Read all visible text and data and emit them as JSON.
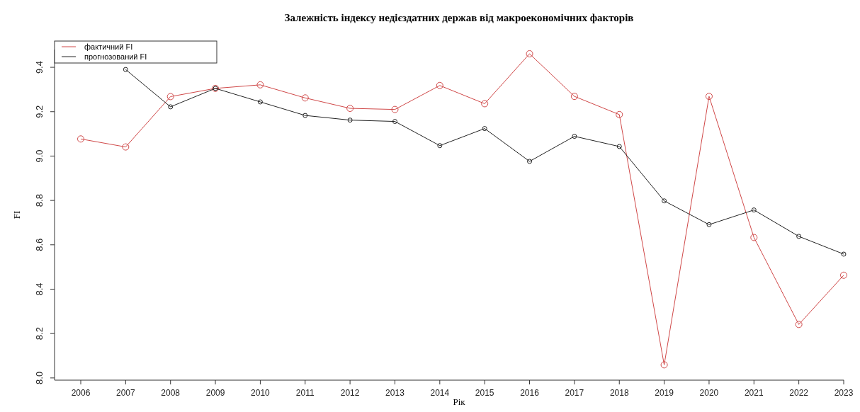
{
  "chart_data": {
    "type": "line",
    "title": "Залежність індексу недієздатних держав від макроекономічних факторів",
    "xlabel": "Рік",
    "ylabel": "FI",
    "categories": [
      "2006",
      "2007",
      "2008",
      "2009",
      "2010",
      "2011",
      "2012",
      "2013",
      "2014",
      "2015",
      "2016",
      "2017",
      "2018",
      "2019",
      "2020",
      "2021",
      "2022",
      "2023"
    ],
    "series": [
      {
        "name": "фактичний FI",
        "color": "#d04848",
        "values": [
          9.077,
          9.041,
          9.268,
          9.305,
          9.321,
          9.262,
          9.215,
          9.21,
          9.318,
          9.236,
          9.461,
          9.269,
          9.187,
          8.059,
          9.269,
          8.633,
          8.241,
          8.463
        ]
      },
      {
        "name": "прогнозований FI",
        "color": "#222222",
        "values": [
          null,
          9.39,
          9.222,
          9.305,
          9.244,
          9.183,
          9.162,
          9.156,
          9.047,
          9.124,
          8.976,
          9.089,
          9.043,
          8.798,
          8.691,
          8.757,
          8.638,
          8.558
        ]
      }
    ],
    "ylim": [
      7.99,
      9.48
    ],
    "yticks": [
      {
        "value": 8,
        "label": "8.0"
      },
      8.2,
      8.4,
      8.6,
      8.8,
      {
        "value": 9,
        "label": "9.0"
      },
      9.2,
      9.4
    ],
    "grid": false,
    "legend": "top left",
    "marker": "circle",
    "line_style": "solid"
  }
}
